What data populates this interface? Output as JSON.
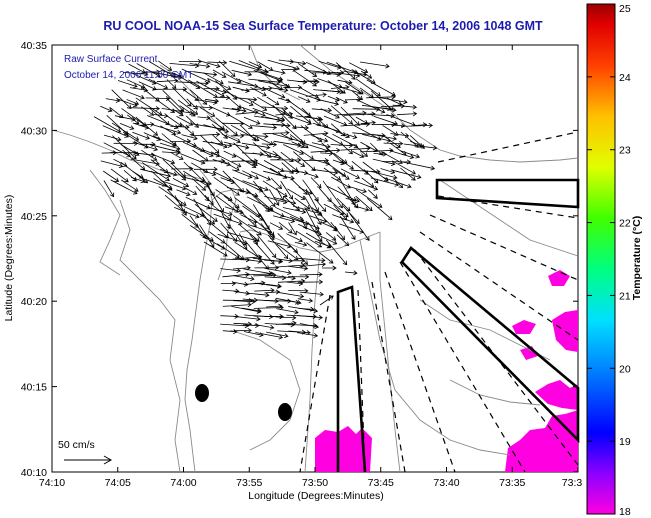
{
  "title": "RU COOL  NOAA-15  Sea Surface Temperature:  October 14, 2006 1048 GMT",
  "legend": {
    "line1": "Raw Surface Current",
    "line2": "October 14, 2006 11:00 GMT"
  },
  "scale_label": "50 cm/s",
  "colorbar": {
    "label": "Temperature (°C)",
    "min": 18,
    "max": 25,
    "ticks": [
      "25",
      "24",
      "23",
      "22",
      "21",
      "20",
      "19",
      "18"
    ]
  },
  "map": {
    "xlabel": "Longitude (Degrees:Minutes)",
    "ylabel": "Latitude (Degrees:Minutes)",
    "x_ticks": [
      "74:10",
      "74:05",
      "74:00",
      "73:55",
      "73:50",
      "73:45",
      "73:40",
      "73:35",
      "73:3"
    ],
    "y_ticks": [
      "40:35",
      "40:30",
      "40:25",
      "40:20",
      "40:15",
      "40:10"
    ],
    "lon_range": [
      "74:10 W",
      "73:30 W"
    ],
    "lat_range": [
      "40:10 N",
      "40:35 N"
    ]
  },
  "colors": {
    "title": "#1c1cb0",
    "sst_patch": "#ff00e0",
    "coast": "#8a8a8a",
    "vectors": "#000000"
  }
}
